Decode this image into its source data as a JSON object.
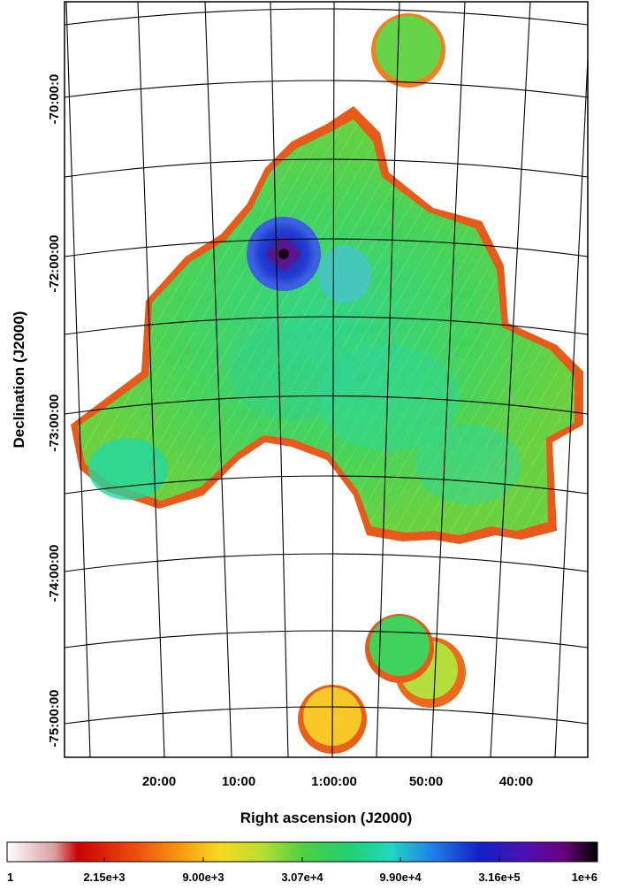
{
  "chart_data": {
    "type": "heatmap",
    "projection": "celestial-tangent",
    "xlabel": "Right ascension (J2000)",
    "ylabel": "Declination (J2000)",
    "x_ticks": [
      "20:00",
      "10:00",
      "1:00:00",
      "50:00",
      "40:00"
    ],
    "y_ticks": [
      "-70:00:0",
      "-72:00:00",
      "-73:00:00",
      "-74:00:00",
      "-75:00:00"
    ],
    "grid": true,
    "colormap_scale": "log",
    "colorbar": {
      "placement": "bottom",
      "tick_labels": [
        "1",
        "2.15e+3",
        "9.00e+3",
        "3.07e+4",
        "9.90e+4",
        "3.16e+5",
        "1e+6"
      ],
      "range": [
        1,
        1000000
      ]
    },
    "colors": {
      "background": "#ffffff",
      "frame": "#000000",
      "grid": "#000000",
      "exposure_typical": "#55d244",
      "exposure_edge": "#e8321a",
      "exposure_peak": "#2a18b0"
    }
  }
}
